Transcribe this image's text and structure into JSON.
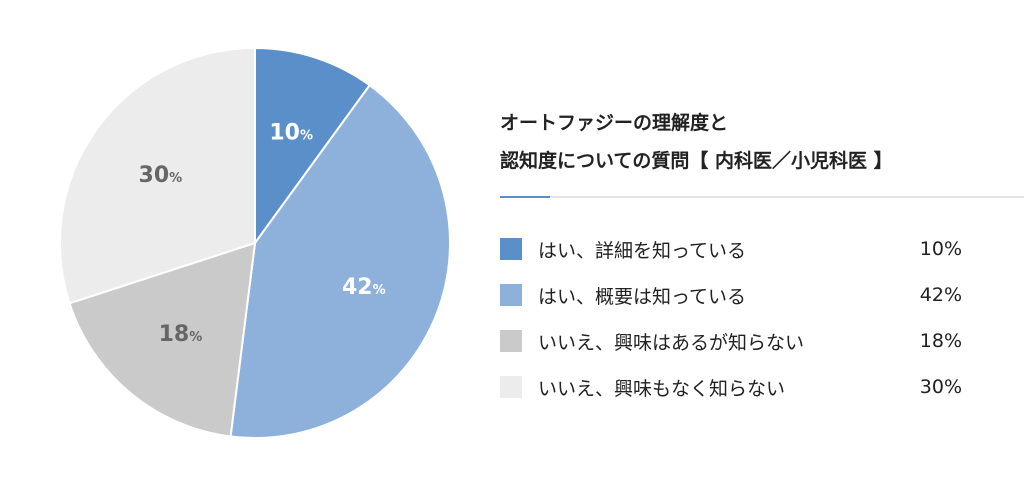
{
  "title_lines": [
    "オートファジーの理解度と",
    "認知度についての質問【 内科医／小児科医 】"
  ],
  "chart_data": {
    "type": "pie",
    "start_angle_deg": 0,
    "direction": "clockwise",
    "slices": [
      {
        "label": "はい、詳細を知っている",
        "value": 10,
        "color": "#5b8fca",
        "text_color": "#ffffff"
      },
      {
        "label": "はい、概要は知っている",
        "value": 42,
        "color": "#8eb1dc",
        "text_color": "#ffffff"
      },
      {
        "label": "いいえ、興味はあるが知らない",
        "value": 18,
        "color": "#cacaca",
        "text_color": "#666666"
      },
      {
        "label": "いいえ、興味もなく知らない",
        "value": 30,
        "color": "#ececec",
        "text_color": "#666666"
      }
    ],
    "value_suffix": "%",
    "legend_position": "right"
  }
}
